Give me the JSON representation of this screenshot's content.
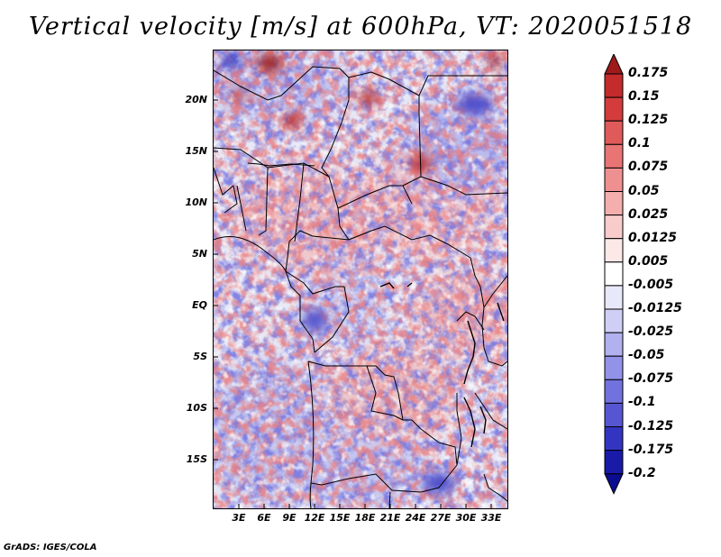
{
  "title": "Vertical velocity [m/s] at 600hPa, VT: 2020051518",
  "lat_labels": [
    "20N",
    "15N",
    "10N",
    "5N",
    "EQ",
    "5S",
    "10S",
    "15S"
  ],
  "lon_labels": [
    "3E",
    "6E",
    "9E",
    "12E",
    "15E",
    "18E",
    "21E",
    "24E",
    "27E",
    "30E",
    "33E"
  ],
  "colorbar": {
    "levels": [
      "0.175",
      "0.15",
      "0.125",
      "0.1",
      "0.075",
      "0.05",
      "0.025",
      "0.0125",
      "0.005",
      "-0.005",
      "-0.0125",
      "-0.025",
      "-0.05",
      "-0.075",
      "-0.1",
      "-0.125",
      "-0.175",
      "-0.2"
    ],
    "colors": [
      "#a01a1a",
      "#c42b2b",
      "#d43c3c",
      "#e05a5a",
      "#e97474",
      "#ef9090",
      "#f5aeae",
      "#f9cccc",
      "#fde8e8",
      "#ffffff",
      "#e8e8fb",
      "#cfcff6",
      "#b1b1f0",
      "#9292e8",
      "#7272de",
      "#5656d2",
      "#3434c2",
      "#1a1aa8",
      "#0c0c90"
    ]
  },
  "credit": "GrADS: IGES/COLA"
}
